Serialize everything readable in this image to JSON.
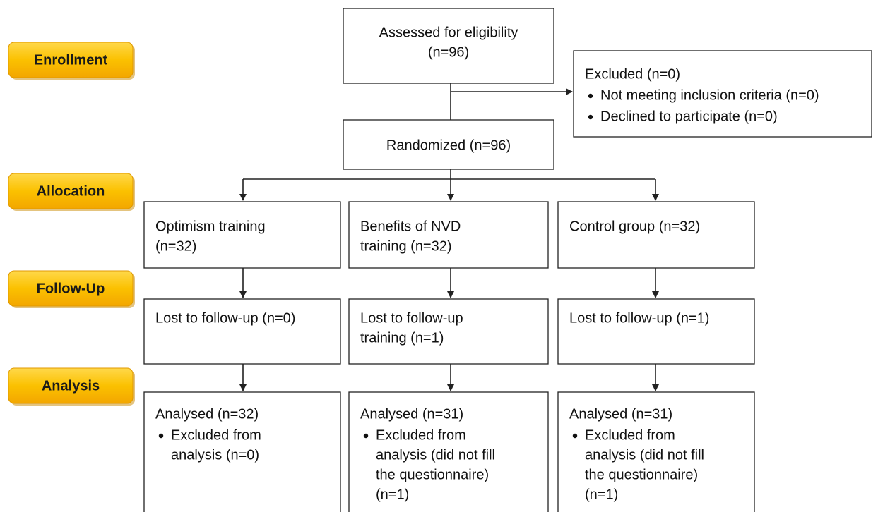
{
  "stages": [
    "Enrollment",
    "Allocation",
    "Follow-Up",
    "Analysis"
  ],
  "nodes": [
    {
      "lines": [
        "Assessed for eligibility",
        "(n=96)"
      ]
    },
    {
      "lines": [
        "Excluded (n=0)"
      ],
      "bullets": [
        [
          "Not meeting inclusion criteria (n=0)"
        ],
        [
          "Declined to participate (n=0)"
        ]
      ]
    },
    {
      "lines": [
        "Randomized (n=96)"
      ]
    },
    {
      "lines": [
        "Optimism training",
        "(n=32)"
      ]
    },
    {
      "lines": [
        "Benefits of NVD",
        "training (n=32)"
      ]
    },
    {
      "lines": [
        "Control group (n=32)"
      ]
    },
    {
      "lines": [
        "Lost to follow-up (n=0)"
      ]
    },
    {
      "lines": [
        "Lost to follow-up",
        "training (n=1)"
      ]
    },
    {
      "lines": [
        "Lost to follow-up (n=1)"
      ]
    },
    {
      "lines": [
        "Analysed (n=32)"
      ],
      "bullets": [
        [
          "Excluded from",
          "analysis (n=0)"
        ]
      ]
    },
    {
      "lines": [
        "Analysed (n=31)"
      ],
      "bullets": [
        [
          "Excluded from",
          "analysis (did not fill",
          "the questionnaire)",
          "(n=1)"
        ]
      ]
    },
    {
      "lines": [
        "Analysed (n=31)"
      ],
      "bullets": [
        [
          "Excluded from",
          "analysis (did not fill",
          "the questionnaire)",
          "(n=1)"
        ]
      ]
    }
  ]
}
